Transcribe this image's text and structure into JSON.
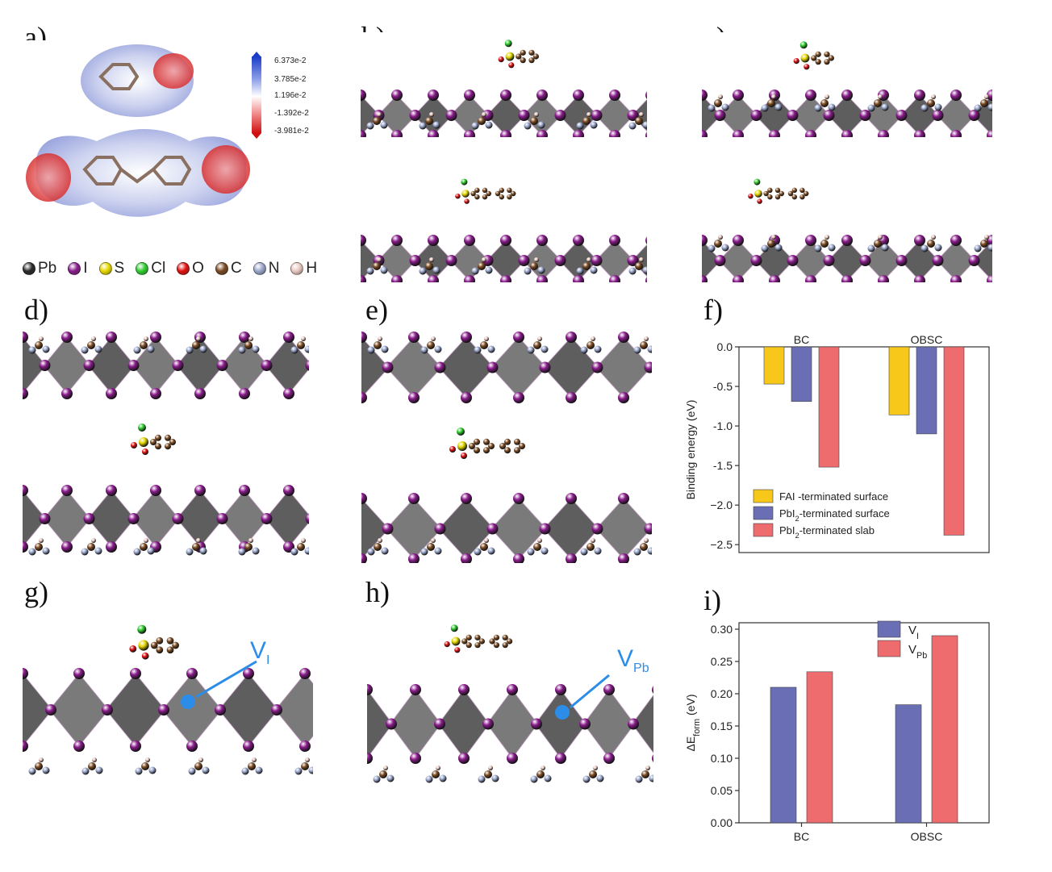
{
  "panels": {
    "a": "a)",
    "b": "b)",
    "c": "c)",
    "d": "d)",
    "e": "e)",
    "f": "f)",
    "g": "g)",
    "h": "h)",
    "i": "i)"
  },
  "atom_legend": [
    {
      "label": "Pb",
      "color": "#2a2a2a"
    },
    {
      "label": "I",
      "color": "#8a1c8c"
    },
    {
      "label": "S",
      "color": "#e6d800"
    },
    {
      "label": "Cl",
      "color": "#2ecc2e"
    },
    {
      "label": "O",
      "color": "#e01010"
    },
    {
      "label": "C",
      "color": "#7a4a22"
    },
    {
      "label": "N",
      "color": "#9aa6cc"
    },
    {
      "label": "H",
      "color": "#e8c8c0"
    }
  ],
  "colorbar": {
    "ticks": [
      "6.373e-2",
      "3.785e-2",
      "1.196e-2",
      "-1.392e-2",
      "-3.981e-2"
    ],
    "colors": {
      "max": "#1a3cc8",
      "mid": "#ffffff",
      "min": "#d01010"
    }
  },
  "vacancy_labels": {
    "g": {
      "main": "V",
      "sub": "I"
    },
    "h": {
      "main": "V",
      "sub": "Pb"
    }
  },
  "chart_data": [
    {
      "panel": "f",
      "type": "bar",
      "categories": [
        "BC",
        "OBSC"
      ],
      "ylabel": "Binding energy (eV)",
      "ylim": [
        -2.6,
        0.0
      ],
      "yticks": [
        0.0,
        -0.5,
        -1.0,
        -1.5,
        -2.0,
        -2.5
      ],
      "ytick_labels": [
        "0.0",
        "-0.5",
        "-1.0",
        "-1.5",
        "−2.0",
        "−2.5"
      ],
      "series": [
        {
          "name": "FAI -terminated surface",
          "color": "#f7c71a",
          "values": [
            -0.47,
            -0.86
          ]
        },
        {
          "name": "PbI2-terminated surface",
          "color": "#6a6fb5",
          "values": [
            -0.69,
            -1.1
          ]
        },
        {
          "name": "PbI2-terminated slab",
          "color": "#ee6b6e",
          "values": [
            -1.52,
            -2.38
          ]
        }
      ],
      "legend_placement": "bottom-left",
      "category_label_placement": "top"
    },
    {
      "panel": "i",
      "type": "bar",
      "categories": [
        "BC",
        "OBSC"
      ],
      "ylabel": "ΔE_form (eV)",
      "ylim": [
        0.0,
        0.31
      ],
      "yticks": [
        0.0,
        0.05,
        0.1,
        0.15,
        0.2,
        0.25,
        0.3
      ],
      "ytick_labels": [
        "0.00",
        "0.05",
        "0.10",
        "0.15",
        "0.20",
        "0.25",
        "0.30"
      ],
      "series": [
        {
          "name": "V_I",
          "color": "#6a6fb5",
          "values": [
            0.21,
            0.183
          ]
        },
        {
          "name": "V_Pb",
          "color": "#ee6b6e",
          "values": [
            0.234,
            0.29
          ]
        }
      ],
      "legend_placement": "top-right"
    }
  ]
}
